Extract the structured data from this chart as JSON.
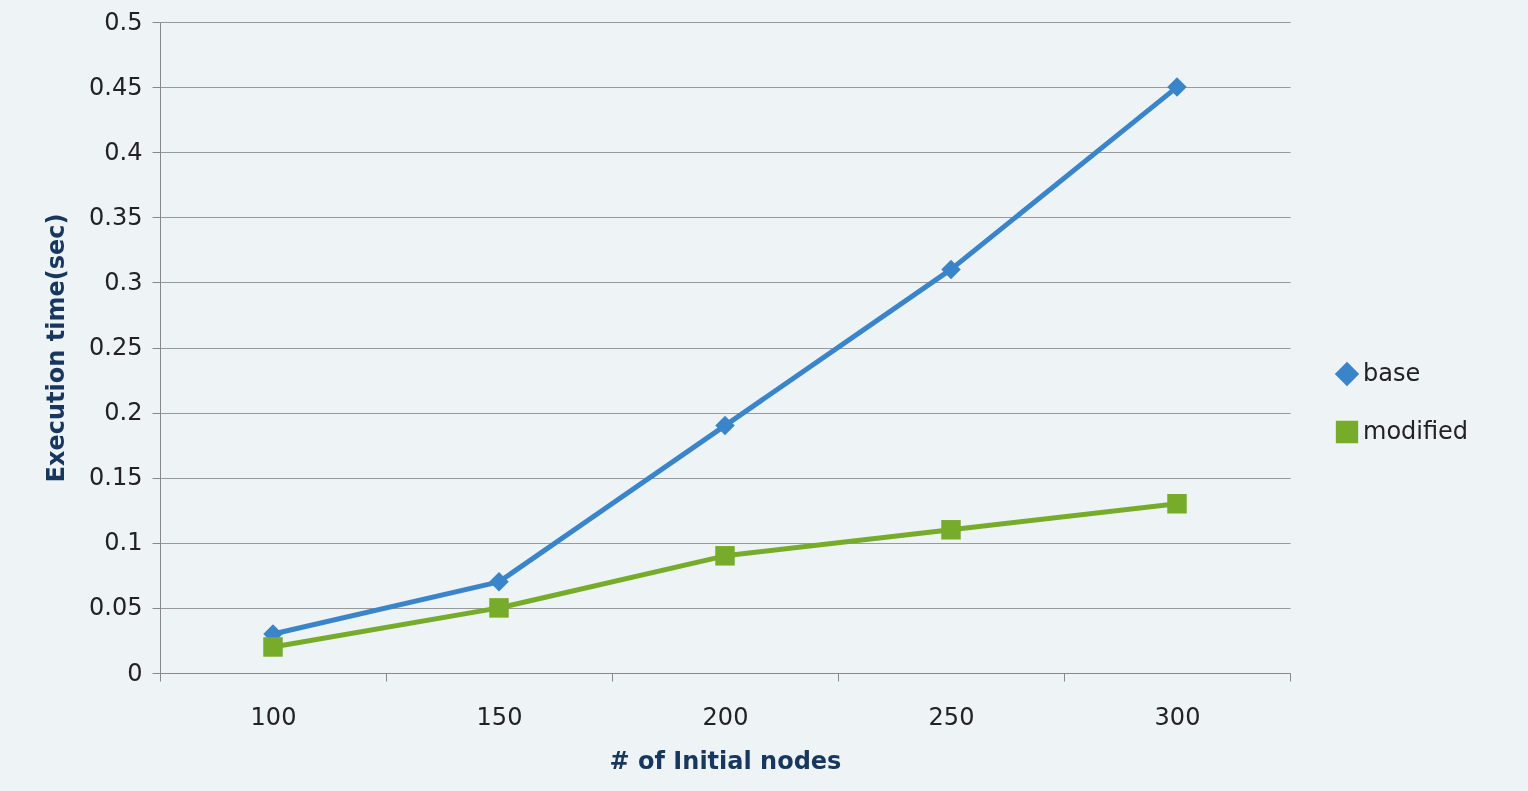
{
  "chart_data": {
    "type": "line",
    "xlabel": "# of Initial nodes",
    "ylabel": "Execution time(sec)",
    "categories": [
      "100",
      "150",
      "200",
      "250",
      "300"
    ],
    "series": [
      {
        "name": "base",
        "color": "#3a85c9",
        "marker": "diamond",
        "values": [
          0.03,
          0.07,
          0.19,
          0.31,
          0.45
        ]
      },
      {
        "name": "modified",
        "color": "#77ac2a",
        "marker": "square",
        "values": [
          0.02,
          0.05,
          0.09,
          0.11,
          0.13
        ]
      }
    ],
    "ylim": [
      0,
      0.5
    ],
    "yticks": [
      0,
      0.05,
      0.1,
      0.15,
      0.2,
      0.25,
      0.3,
      0.35,
      0.4,
      0.45,
      0.5
    ],
    "grid": "y",
    "legend": "right"
  }
}
